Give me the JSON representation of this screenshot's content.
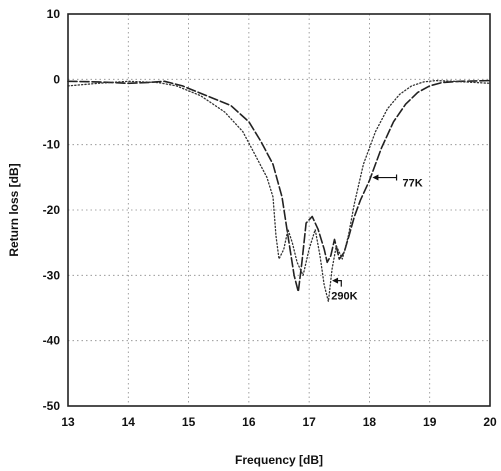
{
  "chart_data": {
    "type": "line",
    "xlabel": "Frequency [dB]",
    "ylabel": "Return loss [dB]",
    "xlim": [
      13,
      20
    ],
    "ylim": [
      -50,
      10
    ],
    "x_ticks": [
      "13",
      "14",
      "15",
      "16",
      "17",
      "18",
      "19",
      "20"
    ],
    "y_ticks": [
      "10",
      "0",
      "-10",
      "-20",
      "-30",
      "-40",
      "-50"
    ],
    "grid": true,
    "series": [
      {
        "name": "77K",
        "style": "dash",
        "color": "#222222",
        "x": [
          13.0,
          13.5,
          14.0,
          14.3,
          14.6,
          14.9,
          15.3,
          15.7,
          16.0,
          16.2,
          16.4,
          16.55,
          16.65,
          16.75,
          16.82,
          16.88,
          16.95,
          17.05,
          17.15,
          17.25,
          17.3,
          17.36,
          17.42,
          17.5,
          17.58,
          17.66,
          17.75,
          17.85,
          18.0,
          18.2,
          18.4,
          18.6,
          18.8,
          19.0,
          19.2,
          19.5,
          20.0
        ],
        "y": [
          -0.3,
          -0.4,
          -0.6,
          -0.5,
          -0.3,
          -1.0,
          -2.5,
          -4.0,
          -6.5,
          -9.5,
          -13.0,
          -18.0,
          -24.0,
          -30.0,
          -32.5,
          -28.0,
          -22.0,
          -21.0,
          -23.0,
          -26.0,
          -28.0,
          -27.0,
          -24.5,
          -27.5,
          -26.5,
          -24.0,
          -21.0,
          -18.5,
          -15.5,
          -10.5,
          -6.5,
          -3.8,
          -2.0,
          -1.0,
          -0.5,
          -0.3,
          -0.2
        ]
      },
      {
        "name": "290K",
        "style": "dot",
        "color": "#333333",
        "x": [
          13.0,
          13.5,
          14.0,
          14.5,
          14.8,
          15.2,
          15.6,
          15.9,
          16.1,
          16.3,
          16.4,
          16.45,
          16.5,
          16.58,
          16.65,
          16.72,
          16.8,
          16.9,
          17.0,
          17.1,
          17.18,
          17.25,
          17.32,
          17.38,
          17.45,
          17.55,
          17.65,
          17.75,
          17.9,
          18.1,
          18.3,
          18.5,
          18.7,
          18.9,
          19.1,
          19.4,
          20.0
        ],
        "y": [
          -1.0,
          -0.6,
          -0.3,
          -0.5,
          -1.0,
          -2.5,
          -5.0,
          -8.0,
          -11.5,
          -15.0,
          -18.0,
          -24.0,
          -27.5,
          -26.0,
          -23.0,
          -25.0,
          -28.0,
          -30.0,
          -26.0,
          -23.0,
          -27.0,
          -31.5,
          -34.0,
          -29.0,
          -25.5,
          -27.5,
          -24.0,
          -19.0,
          -13.0,
          -8.0,
          -4.5,
          -2.3,
          -1.0,
          -0.4,
          -0.2,
          -0.3,
          -0.6
        ]
      }
    ],
    "annotations": [
      {
        "text": "77K",
        "x": 18.45,
        "y": -15.8
      },
      {
        "text": "290K",
        "x": 17.5,
        "y": -32.8
      }
    ]
  }
}
